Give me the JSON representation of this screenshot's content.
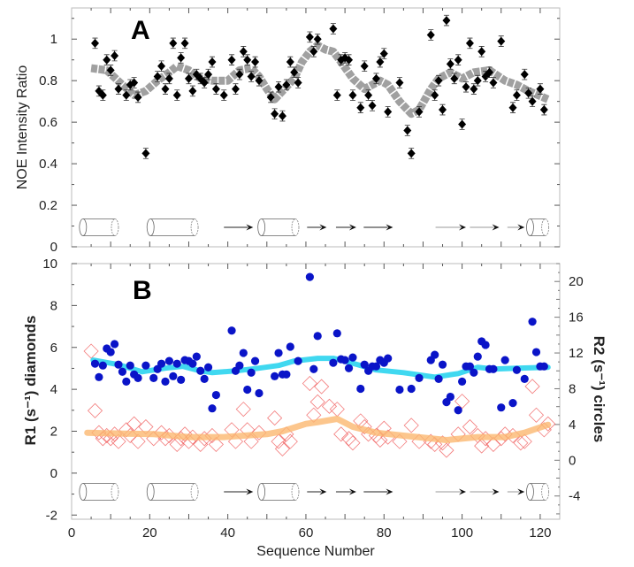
{
  "chart_data": [
    {
      "panel": "A",
      "type": "scatter",
      "title": "A",
      "xlabel": "",
      "ylabel": "NOE Intensity Ratio",
      "xlim": [
        0,
        125
      ],
      "ylim": [
        0,
        1.15
      ],
      "yticks": [
        0,
        0.2,
        0.4,
        0.6,
        0.8,
        1
      ],
      "ytick_labels": [
        "0",
        "0.2",
        "0.4",
        "0.6",
        "0.8",
        "1"
      ],
      "grid": false,
      "colors": {
        "points": "#000000",
        "smooth": "#a0a0a0"
      },
      "error": 0.025,
      "points": [
        [
          6,
          0.98
        ],
        [
          7,
          0.75
        ],
        [
          8,
          0.73
        ],
        [
          9,
          0.9
        ],
        [
          10,
          0.85
        ],
        [
          11,
          0.92
        ],
        [
          12,
          0.76
        ],
        [
          14,
          0.73
        ],
        [
          15,
          0.78
        ],
        [
          16,
          0.79
        ],
        [
          17,
          0.72
        ],
        [
          19,
          0.45
        ],
        [
          22,
          0.82
        ],
        [
          23,
          0.87
        ],
        [
          24,
          0.76
        ],
        [
          25,
          0.81
        ],
        [
          26,
          0.98
        ],
        [
          27,
          0.73
        ],
        [
          28,
          0.91
        ],
        [
          29,
          0.98
        ],
        [
          30,
          0.81
        ],
        [
          31,
          0.75
        ],
        [
          32,
          0.83
        ],
        [
          33,
          0.81
        ],
        [
          34,
          0.79
        ],
        [
          35,
          0.83
        ],
        [
          36,
          0.89
        ],
        [
          37,
          0.76
        ],
        [
          39,
          0.73
        ],
        [
          41,
          0.9
        ],
        [
          42,
          0.76
        ],
        [
          43,
          0.83
        ],
        [
          44,
          0.94
        ],
        [
          45,
          0.9
        ],
        [
          46,
          0.82
        ],
        [
          47,
          0.89
        ],
        [
          48,
          0.8
        ],
        [
          51,
          0.72
        ],
        [
          52,
          0.64
        ],
        [
          53,
          0.77
        ],
        [
          54,
          0.63
        ],
        [
          55,
          0.78
        ],
        [
          56,
          0.89
        ],
        [
          57,
          0.84
        ],
        [
          58,
          0.79
        ],
        [
          61,
          1.01
        ],
        [
          62,
          0.94
        ],
        [
          63,
          1.0
        ],
        [
          67,
          1.05
        ],
        [
          68,
          0.73
        ],
        [
          69,
          0.9
        ],
        [
          70,
          0.91
        ],
        [
          71,
          0.9
        ],
        [
          72,
          0.73
        ],
        [
          74,
          0.67
        ],
        [
          75,
          0.87
        ],
        [
          76,
          0.73
        ],
        [
          77,
          0.68
        ],
        [
          78,
          0.81
        ],
        [
          79,
          0.89
        ],
        [
          80,
          0.93
        ],
        [
          81,
          0.65
        ],
        [
          84,
          0.79
        ],
        [
          86,
          0.56
        ],
        [
          87,
          0.45
        ],
        [
          89,
          0.65
        ],
        [
          92,
          1.02
        ],
        [
          93,
          0.73
        ],
        [
          94,
          0.8
        ],
        [
          95,
          0.66
        ],
        [
          96,
          1.09
        ],
        [
          97,
          0.88
        ],
        [
          98,
          0.81
        ],
        [
          99,
          0.9
        ],
        [
          100,
          0.59
        ],
        [
          101,
          0.77
        ],
        [
          102,
          0.98
        ],
        [
          103,
          0.76
        ],
        [
          104,
          0.8
        ],
        [
          105,
          0.94
        ],
        [
          106,
          0.82
        ],
        [
          107,
          0.84
        ],
        [
          108,
          0.79
        ],
        [
          110,
          0.99
        ],
        [
          113,
          0.67
        ],
        [
          114,
          0.73
        ],
        [
          116,
          0.83
        ],
        [
          117,
          0.74
        ],
        [
          118,
          0.7
        ],
        [
          120,
          0.76
        ],
        [
          121,
          0.66
        ]
      ],
      "smooth": [
        [
          5,
          0.86
        ],
        [
          9,
          0.85
        ],
        [
          13,
          0.78
        ],
        [
          16,
          0.73
        ],
        [
          19,
          0.75
        ],
        [
          22,
          0.8
        ],
        [
          25,
          0.84
        ],
        [
          27,
          0.87
        ],
        [
          30,
          0.85
        ],
        [
          33,
          0.81
        ],
        [
          36,
          0.8
        ],
        [
          40,
          0.8
        ],
        [
          43,
          0.85
        ],
        [
          46,
          0.86
        ],
        [
          48,
          0.82
        ],
        [
          50,
          0.76
        ],
        [
          52,
          0.71
        ],
        [
          54,
          0.75
        ],
        [
          57,
          0.81
        ],
        [
          59,
          0.89
        ],
        [
          61,
          0.94
        ],
        [
          63,
          0.97
        ],
        [
          65,
          0.95
        ],
        [
          67,
          0.94
        ],
        [
          69,
          0.89
        ],
        [
          72,
          0.81
        ],
        [
          75,
          0.76
        ],
        [
          77,
          0.78
        ],
        [
          79,
          0.8
        ],
        [
          81,
          0.78
        ],
        [
          84,
          0.7
        ],
        [
          87,
          0.64
        ],
        [
          89,
          0.66
        ],
        [
          92,
          0.76
        ],
        [
          94,
          0.81
        ],
        [
          97,
          0.84
        ],
        [
          100,
          0.81
        ],
        [
          103,
          0.84
        ],
        [
          107,
          0.85
        ],
        [
          111,
          0.8
        ],
        [
          114,
          0.78
        ],
        [
          117,
          0.75
        ],
        [
          122,
          0.71
        ]
      ]
    },
    {
      "panel": "B",
      "type": "scatter",
      "title": "B",
      "xlabel": "Sequence Number",
      "ylabel": "R1 (s⁻¹) diamonds",
      "y2label": "R2 (s⁻¹) circles",
      "xlim": [
        0,
        125
      ],
      "ylim": [
        -2.2,
        10
      ],
      "y2lim": [
        -6.6,
        22
      ],
      "xticks": [
        0,
        20,
        40,
        60,
        80,
        100,
        120
      ],
      "xtick_labels": [
        "0",
        "20",
        "40",
        "60",
        "80",
        "100",
        "120"
      ],
      "yticks": [
        -2,
        0,
        2,
        4,
        6,
        8,
        10
      ],
      "ytick_labels": [
        "-2",
        "0",
        "2",
        "4",
        "6",
        "8",
        "10"
      ],
      "y2ticks": [
        -4,
        0,
        4,
        8,
        12,
        16,
        20
      ],
      "y2tick_labels": [
        "-4",
        "0",
        "4",
        "8",
        "12",
        "16",
        "20"
      ],
      "grid": false,
      "colors": {
        "R1": "#f05a5a",
        "R1_smooth": "#fbb870",
        "R2": "#0a14c8",
        "R2_smooth": "#40d8f0",
        "ylabel": "#e01010",
        "y2label": "#1010d0"
      },
      "R1": [
        [
          5,
          5.82
        ],
        [
          6,
          2.98
        ],
        [
          7,
          1.93
        ],
        [
          8,
          1.65
        ],
        [
          9,
          1.79
        ],
        [
          10,
          1.65
        ],
        [
          11,
          1.86
        ],
        [
          12,
          1.51
        ],
        [
          14,
          2.07
        ],
        [
          15,
          1.79
        ],
        [
          16,
          2.35
        ],
        [
          17,
          1.51
        ],
        [
          19,
          2.21
        ],
        [
          21,
          1.65
        ],
        [
          23,
          1.93
        ],
        [
          24,
          1.65
        ],
        [
          25,
          1.79
        ],
        [
          27,
          1.37
        ],
        [
          28,
          1.65
        ],
        [
          29,
          1.86
        ],
        [
          30,
          1.51
        ],
        [
          31,
          1.72
        ],
        [
          33,
          1.37
        ],
        [
          34,
          1.65
        ],
        [
          36,
          1.79
        ],
        [
          37,
          1.37
        ],
        [
          41,
          2.07
        ],
        [
          42,
          1.51
        ],
        [
          44,
          3.05
        ],
        [
          45,
          2.07
        ],
        [
          46,
          1.51
        ],
        [
          48,
          1.93
        ],
        [
          52,
          2.63
        ],
        [
          53,
          1.51
        ],
        [
          54,
          1.16
        ],
        [
          55,
          1.86
        ],
        [
          56,
          1.51
        ],
        [
          61,
          4.28
        ],
        [
          62,
          2.77
        ],
        [
          63,
          3.4
        ],
        [
          64,
          4.13
        ],
        [
          66,
          3.19
        ],
        [
          68,
          3.05
        ],
        [
          69,
          1.86
        ],
        [
          71,
          1.65
        ],
        [
          72,
          1.44
        ],
        [
          74,
          2.49
        ],
        [
          75,
          2.21
        ],
        [
          76,
          1.86
        ],
        [
          78,
          1.79
        ],
        [
          79,
          1.58
        ],
        [
          80,
          2.14
        ],
        [
          81,
          1.72
        ],
        [
          84,
          1.51
        ],
        [
          87,
          2.28
        ],
        [
          89,
          1.51
        ],
        [
          92,
          1.51
        ],
        [
          93,
          1.37
        ],
        [
          95,
          1.44
        ],
        [
          96,
          1.09
        ],
        [
          99,
          1.86
        ],
        [
          100,
          3.43
        ],
        [
          102,
          2.21
        ],
        [
          104,
          1.79
        ],
        [
          105,
          1.3
        ],
        [
          106,
          1.65
        ],
        [
          108,
          1.37
        ],
        [
          110,
          1.65
        ],
        [
          111,
          1.86
        ],
        [
          113,
          1.79
        ],
        [
          115,
          1.44
        ],
        [
          116,
          1.51
        ],
        [
          118,
          4.14
        ],
        [
          119,
          2.77
        ],
        [
          121,
          2.07
        ],
        [
          122,
          2.35
        ]
      ],
      "R1_smooth": [
        [
          4,
          1.93
        ],
        [
          12,
          1.89
        ],
        [
          21,
          1.86
        ],
        [
          30,
          1.72
        ],
        [
          39,
          1.72
        ],
        [
          50,
          1.86
        ],
        [
          54,
          2.0
        ],
        [
          60,
          2.35
        ],
        [
          63,
          2.43
        ],
        [
          68,
          2.59
        ],
        [
          72,
          2.21
        ],
        [
          78,
          1.93
        ],
        [
          85,
          1.79
        ],
        [
          96,
          1.58
        ],
        [
          104,
          1.72
        ],
        [
          111,
          1.72
        ],
        [
          116,
          1.93
        ],
        [
          122,
          2.31
        ]
      ],
      "R2": [
        [
          6,
          10.8
        ],
        [
          7,
          9.3
        ],
        [
          8,
          10.6
        ],
        [
          9,
          12.5
        ],
        [
          10,
          12.1
        ],
        [
          11,
          13.0
        ],
        [
          12,
          10.7
        ],
        [
          13,
          9.9
        ],
        [
          14,
          8.8
        ],
        [
          15,
          10.6
        ],
        [
          16,
          9.6
        ],
        [
          17,
          9.2
        ],
        [
          19,
          10.6
        ],
        [
          21,
          9.2
        ],
        [
          22,
          10.2
        ],
        [
          23,
          10.8
        ],
        [
          24,
          8.8
        ],
        [
          25,
          11.1
        ],
        [
          26,
          9.4
        ],
        [
          27,
          10.8
        ],
        [
          28,
          9.0
        ],
        [
          29,
          11.2
        ],
        [
          30,
          11.1
        ],
        [
          31,
          10.8
        ],
        [
          32,
          11.6
        ],
        [
          33,
          10.0
        ],
        [
          34,
          9.1
        ],
        [
          35,
          10.4
        ],
        [
          36,
          5.8
        ],
        [
          37,
          7.3
        ],
        [
          41,
          14.5
        ],
        [
          42,
          10.0
        ],
        [
          43,
          10.6
        ],
        [
          44,
          12.0
        ],
        [
          45,
          7.9
        ],
        [
          46,
          9.8
        ],
        [
          47,
          11.1
        ],
        [
          48,
          7.5
        ],
        [
          52,
          9.4
        ],
        [
          53,
          12.0
        ],
        [
          54,
          9.6
        ],
        [
          55,
          9.6
        ],
        [
          56,
          12.7
        ],
        [
          58,
          11.1
        ],
        [
          61,
          20.5
        ],
        [
          62,
          10.2
        ],
        [
          63,
          13.9
        ],
        [
          67,
          10.9
        ],
        [
          68,
          14.2
        ],
        [
          69,
          11.3
        ],
        [
          70,
          11.2
        ],
        [
          71,
          10.3
        ],
        [
          72,
          11.5
        ],
        [
          74,
          8.0
        ],
        [
          75,
          10.7
        ],
        [
          76,
          10.0
        ],
        [
          77,
          10.5
        ],
        [
          78,
          10.5
        ],
        [
          79,
          11.2
        ],
        [
          80,
          10.9
        ],
        [
          81,
          11.4
        ],
        [
          84,
          7.9
        ],
        [
          87,
          8.0
        ],
        [
          89,
          9.2
        ],
        [
          92,
          11.2
        ],
        [
          93,
          11.8
        ],
        [
          94,
          9.1
        ],
        [
          95,
          10.7
        ],
        [
          96,
          6.5
        ],
        [
          97,
          7.1
        ],
        [
          99,
          5.6
        ],
        [
          100,
          8.8
        ],
        [
          101,
          10.5
        ],
        [
          102,
          10.5
        ],
        [
          103,
          9.8
        ],
        [
          104,
          11.6
        ],
        [
          105,
          13.3
        ],
        [
          106,
          12.9
        ],
        [
          107,
          10.2
        ],
        [
          108,
          10.2
        ],
        [
          110,
          5.9
        ],
        [
          111,
          11.2
        ],
        [
          113,
          6.4
        ],
        [
          114,
          10.1
        ],
        [
          116,
          9.1
        ],
        [
          118,
          15.5
        ],
        [
          119,
          12.1
        ],
        [
          120,
          10.5
        ],
        [
          121,
          10.5
        ]
      ],
      "R2_smooth": [
        [
          5.5,
          11.2
        ],
        [
          12,
          10.7
        ],
        [
          18,
          9.9
        ],
        [
          24,
          10.3
        ],
        [
          28.5,
          10.5
        ],
        [
          33,
          10.0
        ],
        [
          36,
          9.8
        ],
        [
          42,
          10.0
        ],
        [
          48,
          10.3
        ],
        [
          53,
          10.6
        ],
        [
          57,
          11.1
        ],
        [
          63,
          11.4
        ],
        [
          67,
          11.4
        ],
        [
          70,
          11.1
        ],
        [
          78,
          10.1
        ],
        [
          85,
          9.8
        ],
        [
          93,
          9.3
        ],
        [
          99,
          9.7
        ],
        [
          104,
          10.4
        ],
        [
          108,
          10.2
        ],
        [
          114,
          10.3
        ],
        [
          122,
          10.4
        ]
      ]
    }
  ],
  "secondary_structure": {
    "helices": [
      [
        2,
        12
      ],
      [
        19.3,
        32.4
      ],
      [
        47.7,
        58.2
      ],
      [
        116.5,
        122.2
      ]
    ],
    "strands": [
      [
        39,
        46.5
      ],
      [
        60.3,
        65.3
      ],
      [
        67.7,
        72.9
      ],
      [
        74.8,
        82.3
      ],
      [
        93.2,
        101
      ],
      [
        102,
        109.5
      ],
      [
        111.6,
        116
      ]
    ]
  }
}
